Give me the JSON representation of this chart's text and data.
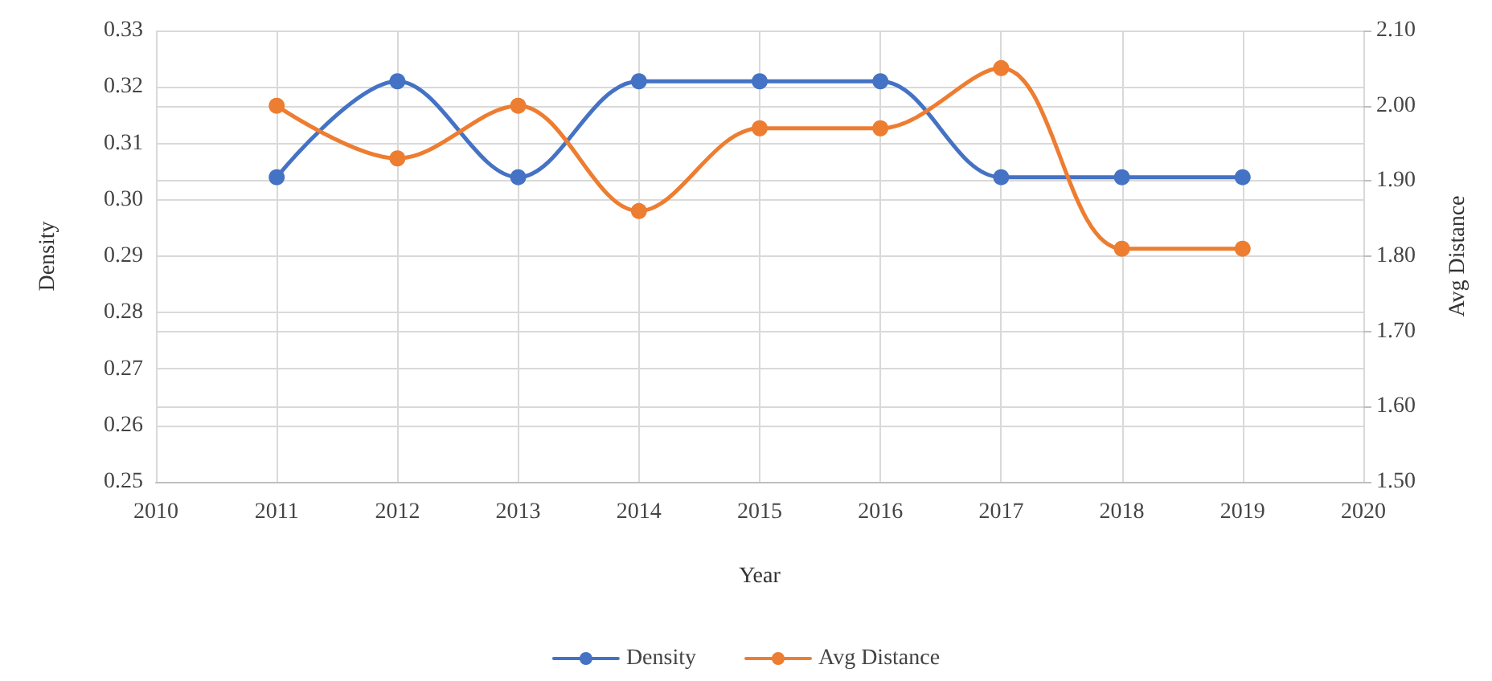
{
  "chart_data": {
    "type": "line",
    "xlabel": "Year",
    "ylabel": "Density",
    "y2label": "Avg Distance",
    "x": [
      2011,
      2012,
      2013,
      2014,
      2015,
      2016,
      2017,
      2018,
      2019
    ],
    "series": [
      {
        "name": "Density",
        "color": "#4472c4",
        "values": [
          0.304,
          0.321,
          0.304,
          0.321,
          0.321,
          0.321,
          0.304,
          0.304,
          0.304
        ]
      },
      {
        "name": "Avg Distance",
        "color": "#ed7d31",
        "axis": "y2",
        "values": [
          2.0,
          1.93,
          2.0,
          1.86,
          1.97,
          1.97,
          2.05,
          1.81,
          1.81
        ]
      }
    ],
    "xlim": [
      2010,
      2020
    ],
    "xticks": [
      2010,
      2011,
      2012,
      2013,
      2014,
      2015,
      2016,
      2017,
      2018,
      2019,
      2020
    ],
    "ylim": [
      0.25,
      0.33
    ],
    "yticks": [
      {
        "value": 0.25,
        "label": "0.25"
      },
      {
        "value": 0.26,
        "label": "0.26"
      },
      {
        "value": 0.27,
        "label": "0.27"
      },
      {
        "value": 0.28,
        "label": "0.28"
      },
      {
        "value": 0.29,
        "label": "0.29"
      },
      {
        "value": 0.3,
        "label": "0.30"
      },
      {
        "value": 0.31,
        "label": "0.31"
      },
      {
        "value": 0.32,
        "label": "0.32"
      },
      {
        "value": 0.33,
        "label": "0.33"
      }
    ],
    "y2lim": [
      1.5,
      2.1
    ],
    "y2ticks": [
      {
        "value": 1.5,
        "label": "1.50"
      },
      {
        "value": 1.6,
        "label": "1.60"
      },
      {
        "value": 1.7,
        "label": "1.70"
      },
      {
        "value": 1.8,
        "label": "1.80"
      },
      {
        "value": 1.9,
        "label": "1.90"
      },
      {
        "value": 2.0,
        "label": "2.00"
      },
      {
        "value": 2.1,
        "label": "2.10"
      }
    ],
    "grid": true,
    "legend": "bottom",
    "marker": "circle",
    "line_style": "solid"
  }
}
